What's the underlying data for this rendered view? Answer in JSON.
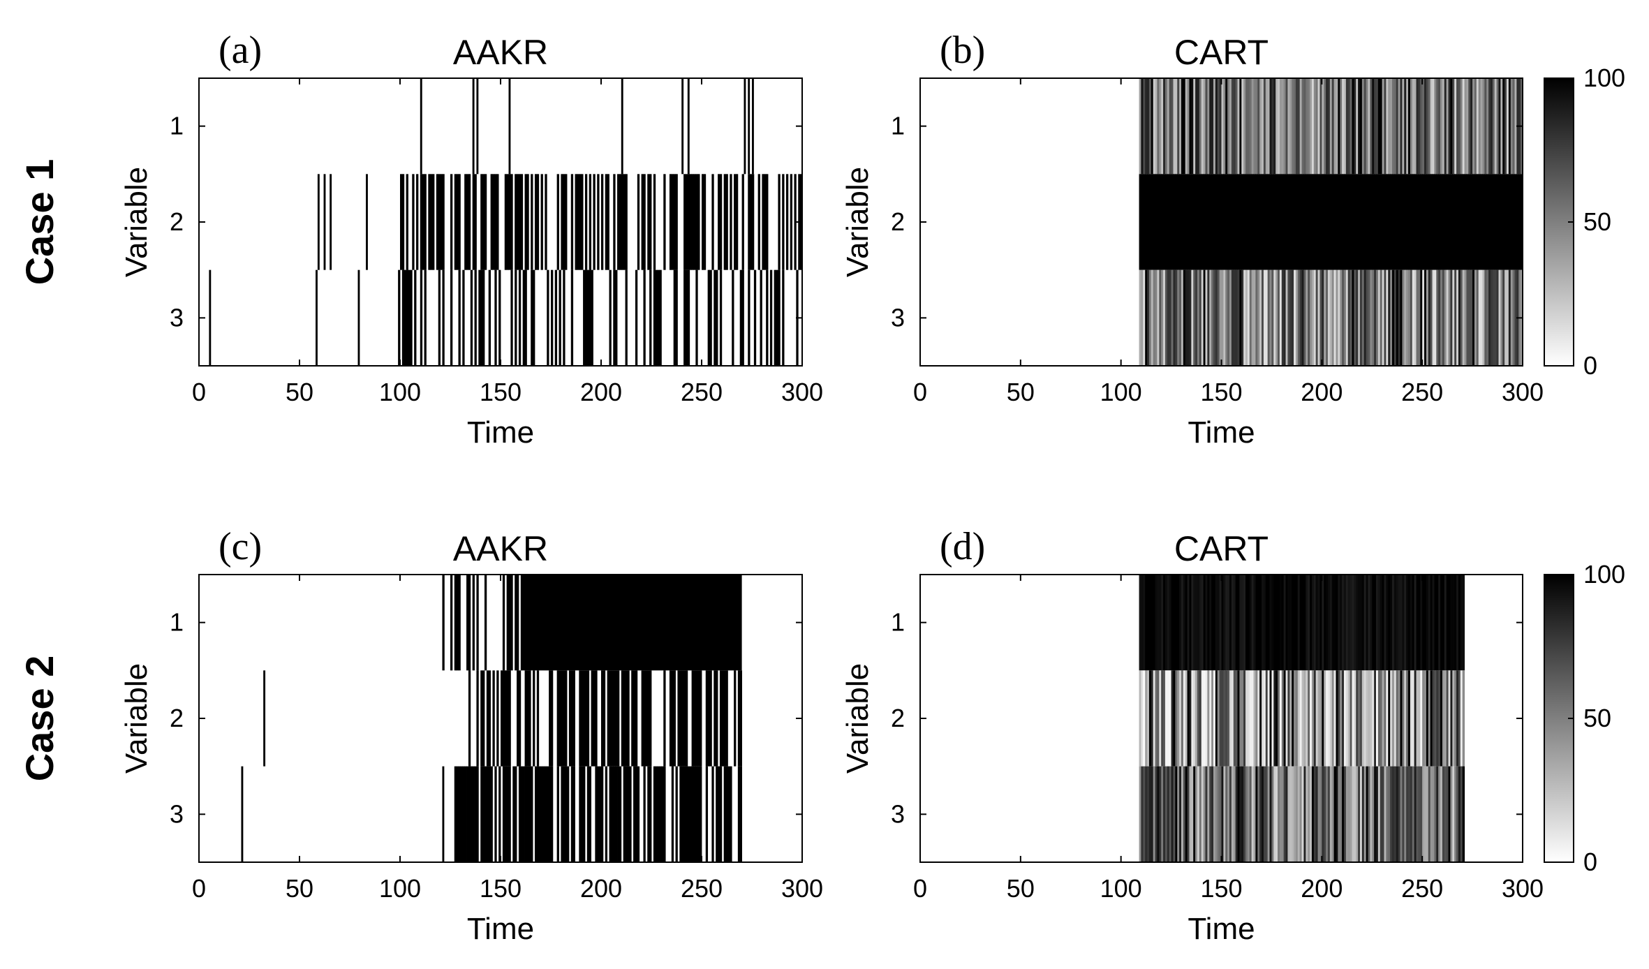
{
  "row_labels": [
    "Case 1",
    "Case 2"
  ],
  "colorbar": {
    "ticks": [
      "0",
      "50",
      "100"
    ],
    "range": [
      0,
      100
    ]
  },
  "chart_data": [
    {
      "type": "heatmap",
      "tag": "(a)",
      "title": "AAKR",
      "xlabel": "Time",
      "ylabel": "Variable",
      "xlim": [
        0,
        300
      ],
      "xticks": [
        "0",
        "50",
        "100",
        "150",
        "200",
        "250",
        "300"
      ],
      "yticks": [
        "1",
        "2",
        "3"
      ],
      "value_scale": "binary",
      "rows": [
        {
          "variable": 1,
          "flags": [
            [
              110,
              111
            ],
            [
              136,
              137
            ],
            [
              138,
              139
            ],
            [
              154,
              155
            ],
            [
              210,
              211
            ],
            [
              240,
              241
            ],
            [
              243,
              244
            ],
            [
              271,
              272
            ],
            [
              273,
              274
            ],
            [
              275,
              276
            ]
          ],
          "density": 0.0,
          "from": 0,
          "to": 0,
          "seed": 11
        },
        {
          "variable": 2,
          "flags": [
            [
              59,
              60
            ],
            [
              62,
              63
            ],
            [
              65,
              66
            ],
            [
              83,
              84
            ]
          ],
          "density": 0.55,
          "from": 100,
          "to": 300,
          "seed": 23
        },
        {
          "variable": 3,
          "flags": [
            [
              5,
              6
            ],
            [
              58,
              59
            ],
            [
              79,
              80
            ]
          ],
          "density": 0.35,
          "from": 99,
          "to": 300,
          "seed": 37
        }
      ]
    },
    {
      "type": "heatmap",
      "tag": "(b)",
      "title": "CART",
      "xlabel": "Time",
      "ylabel": "Variable",
      "xlim": [
        0,
        300
      ],
      "xticks": [
        "0",
        "50",
        "100",
        "150",
        "200",
        "250",
        "300"
      ],
      "yticks": [
        "1",
        "2",
        "3"
      ],
      "value_scale": "percent",
      "rows": [
        {
          "variable": 1,
          "from": 109,
          "to": 300,
          "mean": 55,
          "spread": 40,
          "seed": 101
        },
        {
          "variable": 2,
          "from": 109,
          "to": 300,
          "mean": 100,
          "spread": 0,
          "seed": 102
        },
        {
          "variable": 3,
          "from": 109,
          "to": 300,
          "mean": 50,
          "spread": 40,
          "seed": 103
        }
      ]
    },
    {
      "type": "heatmap",
      "tag": "(c)",
      "title": "AAKR",
      "xlabel": "Time",
      "ylabel": "Variable",
      "xlim": [
        0,
        300
      ],
      "xticks": [
        "0",
        "50",
        "100",
        "150",
        "200",
        "250",
        "300"
      ],
      "yticks": [
        "1",
        "2",
        "3"
      ],
      "value_scale": "binary",
      "rows": [
        {
          "variable": 1,
          "flags": [
            [
              160,
              270
            ]
          ],
          "density": 0.5,
          "from": 121,
          "to": 160,
          "seed": 51
        },
        {
          "variable": 2,
          "flags": [
            [
              32,
              33
            ]
          ],
          "density": 0.55,
          "from": 134,
          "to": 270,
          "seed": 63
        },
        {
          "variable": 3,
          "flags": [
            [
              21,
              22
            ],
            [
              121,
              122
            ]
          ],
          "density": 0.75,
          "from": 127,
          "to": 270,
          "seed": 77
        }
      ]
    },
    {
      "type": "heatmap",
      "tag": "(d)",
      "title": "CART",
      "xlabel": "Time",
      "ylabel": "Variable",
      "xlim": [
        0,
        300
      ],
      "xticks": [
        "0",
        "50",
        "100",
        "150",
        "200",
        "250",
        "300"
      ],
      "yticks": [
        "1",
        "2",
        "3"
      ],
      "value_scale": "percent",
      "rows": [
        {
          "variable": 1,
          "from": 109,
          "to": 271,
          "mean": 96,
          "spread": 8,
          "seed": 201
        },
        {
          "variable": 2,
          "from": 109,
          "to": 271,
          "mean": 45,
          "spread": 45,
          "seed": 202
        },
        {
          "variable": 3,
          "from": 109,
          "to": 271,
          "mean": 55,
          "spread": 40,
          "seed": 203
        }
      ]
    }
  ]
}
